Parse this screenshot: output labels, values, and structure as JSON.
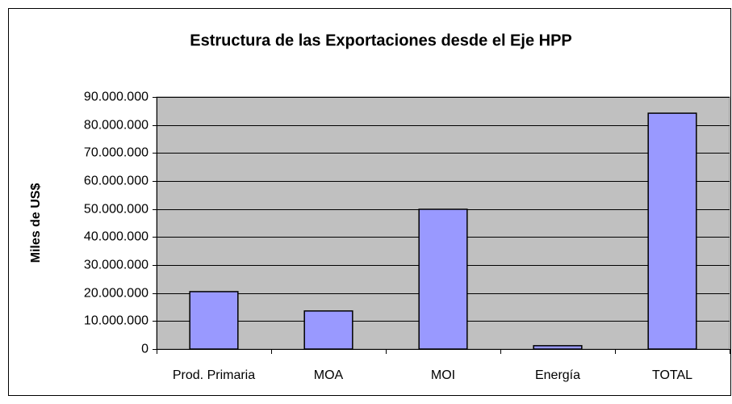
{
  "chart_data": {
    "type": "bar",
    "title": "Estructura de las Exportaciones desde el Eje HPP",
    "y_label": "Miles de US$",
    "categories": [
      "Prod. Primaria",
      "MOA",
      "MOI",
      "Energía",
      "TOTAL"
    ],
    "values": [
      20500000,
      13600000,
      49900000,
      1200000,
      84200000
    ],
    "color": "#9999ff",
    "ylim": [
      0,
      90000000
    ],
    "yticks": [
      0,
      {
        "value": 10000000,
        "label": "10.000.000"
      },
      {
        "value": 20000000,
        "label": "20.000.000"
      },
      {
        "value": 30000000,
        "label": "30.000.000"
      },
      {
        "value": 40000000,
        "label": "40.000.000"
      },
      {
        "value": 50000000,
        "label": "50.000.000"
      },
      {
        "value": 60000000,
        "label": "60.000.000"
      },
      {
        "value": 70000000,
        "label": "70.000.000"
      },
      {
        "value": 80000000,
        "label": "80.000.000"
      },
      {
        "value": 90000000,
        "label": "90.000.000"
      }
    ],
    "grid": true
  }
}
